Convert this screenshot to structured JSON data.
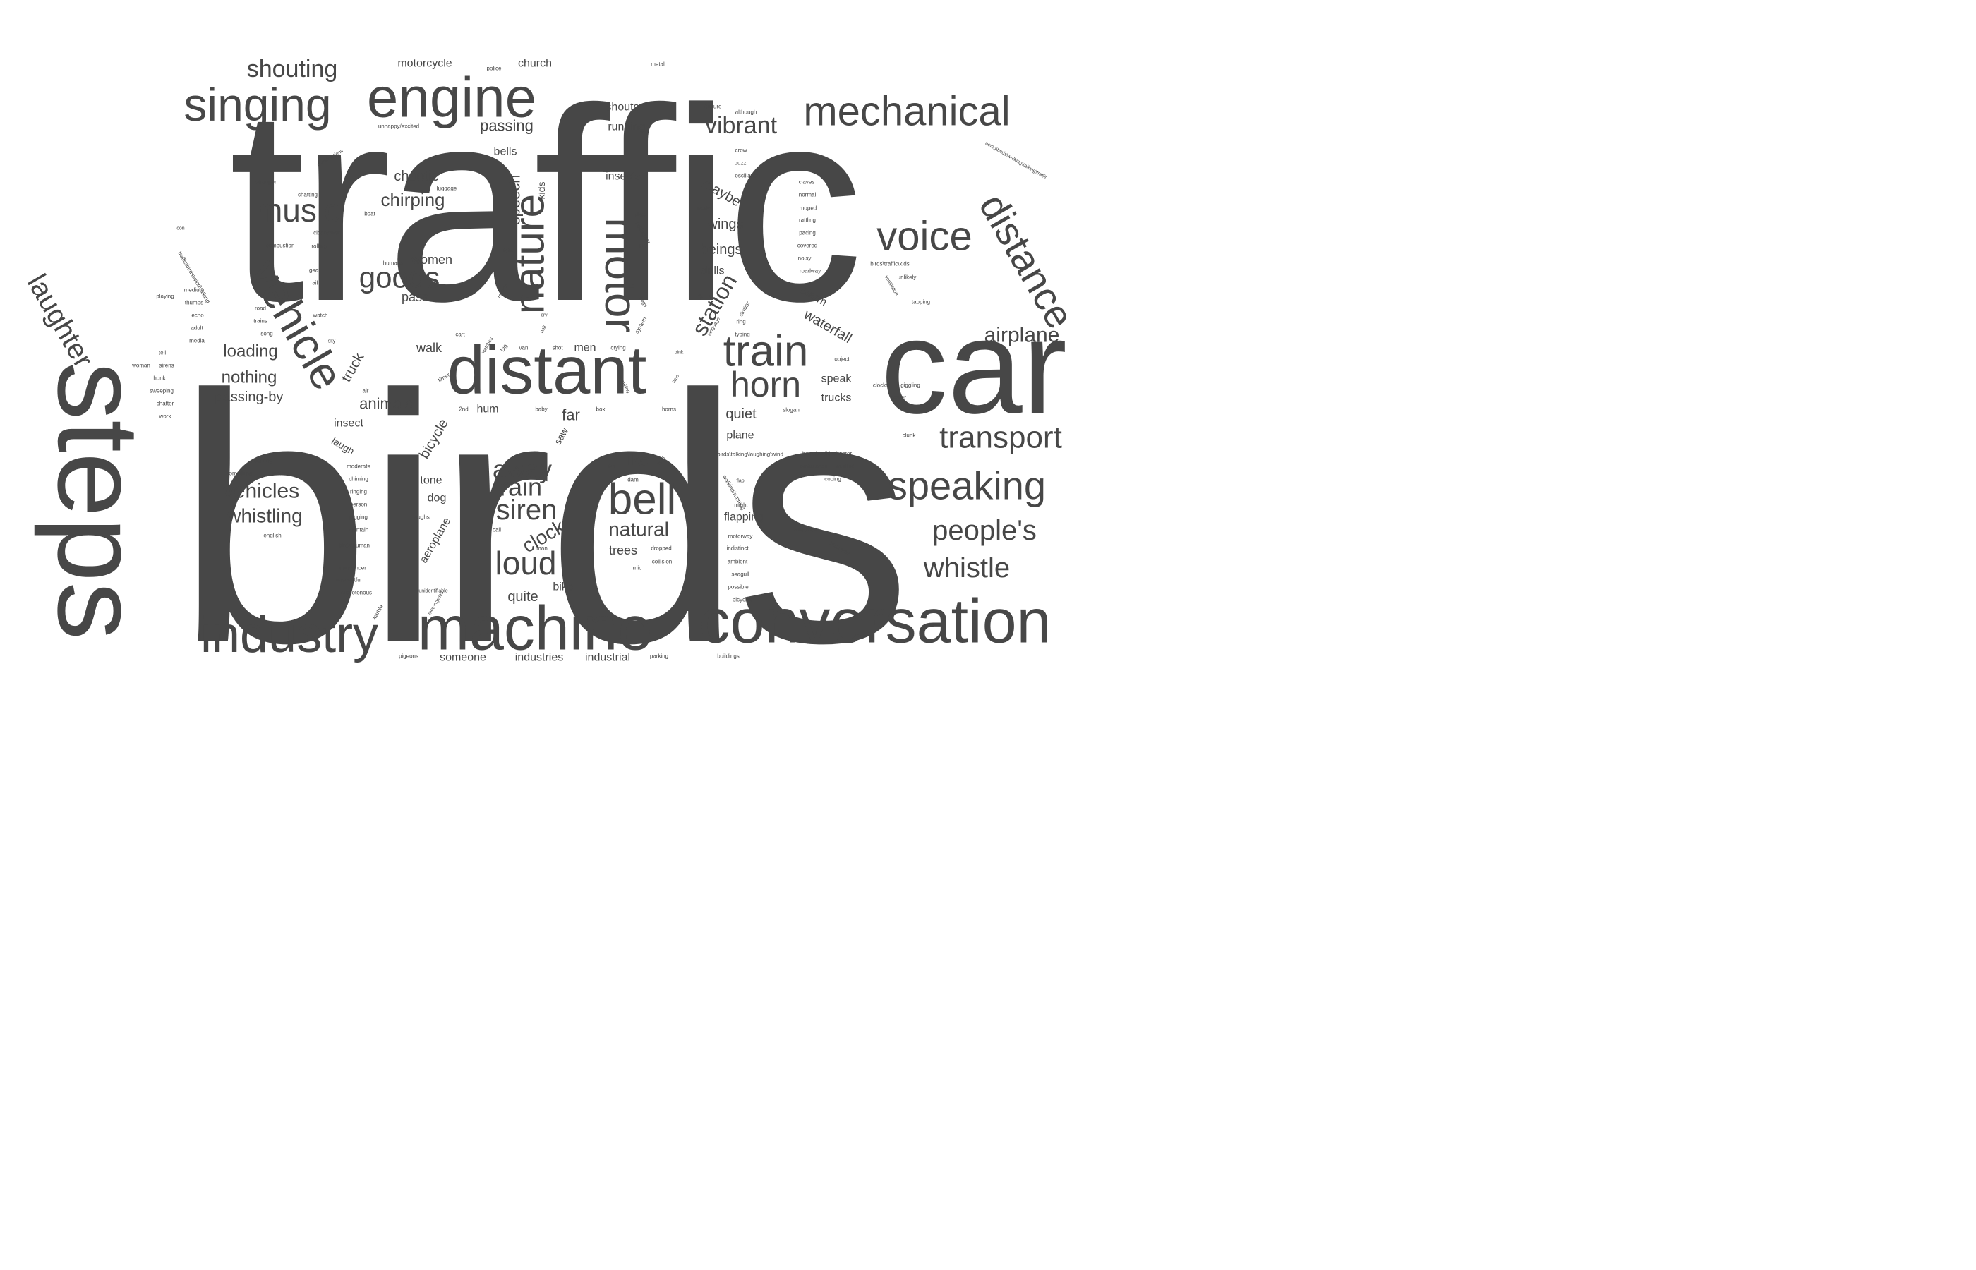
{
  "colors": {
    "word": "#474747",
    "background": "#ffffff"
  },
  "words": [
    {
      "text": "traffic",
      "size": 5,
      "rot": 0
    },
    {
      "text": "birds",
      "size": 5,
      "rot": 0
    },
    {
      "text": "car",
      "size": 4,
      "rot": 0
    },
    {
      "text": "steps",
      "size": 4,
      "rot": 90
    },
    {
      "text": "distant",
      "size": 3,
      "rot": 0
    },
    {
      "text": "machine",
      "size": 3,
      "rot": 0
    },
    {
      "text": "conversation",
      "size": 3,
      "rot": 0
    },
    {
      "text": "industry",
      "size": 3,
      "rot": 0
    },
    {
      "text": "engine",
      "size": 3,
      "rot": 0
    },
    {
      "text": "singing",
      "size": 3,
      "rot": 0
    },
    {
      "text": "mechanical",
      "size": 3,
      "rot": 0
    },
    {
      "text": "vehicle",
      "size": 3,
      "rot": 60
    },
    {
      "text": "motor",
      "size": 3,
      "rot": 90
    },
    {
      "text": "nature",
      "size": 3,
      "rot": -90
    },
    {
      "text": "voice",
      "size": 3,
      "rot": 0
    },
    {
      "text": "bell",
      "size": 3,
      "rot": 0
    },
    {
      "text": "train",
      "size": 3,
      "rot": 0
    },
    {
      "text": "horn",
      "size": 3,
      "rot": 0
    },
    {
      "text": "speaking",
      "size": 3,
      "rot": 0
    },
    {
      "text": "distance",
      "size": 3,
      "rot": 60
    },
    {
      "text": "transport",
      "size": 2,
      "rot": 0
    },
    {
      "text": "people's",
      "size": 2,
      "rot": 0
    },
    {
      "text": "whistle",
      "size": 2,
      "rot": 0
    },
    {
      "text": "laughter",
      "size": 2,
      "rot": 60
    },
    {
      "text": "music",
      "size": 2,
      "rot": 0
    },
    {
      "text": "goods",
      "size": 2,
      "rot": 0
    },
    {
      "text": "loud",
      "size": 2,
      "rot": 0
    },
    {
      "text": "siren",
      "size": 2,
      "rot": 0
    },
    {
      "text": "away",
      "size": 2,
      "rot": 0
    },
    {
      "text": "rain",
      "size": 2,
      "rot": 0
    },
    {
      "text": "clock",
      "size": 2,
      "rot": -30
    },
    {
      "text": "vibrant",
      "size": 2,
      "rot": 0
    },
    {
      "text": "airplane",
      "size": 2,
      "rot": 0
    },
    {
      "text": "station",
      "size": 2,
      "rot": -60
    },
    {
      "text": "shouting",
      "size": 2,
      "rot": 0
    },
    {
      "text": "vehicles",
      "size": 2,
      "rot": 0
    },
    {
      "text": "whistling",
      "size": 2,
      "rot": 0
    },
    {
      "text": "natural",
      "size": 2,
      "rot": 0
    },
    {
      "text": "like",
      "size": 1,
      "rot": 0
    },
    {
      "text": "chirping",
      "size": 1,
      "rot": 0
    },
    {
      "text": "chaotic",
      "size": 1,
      "rot": 0
    },
    {
      "text": "women",
      "size": 1,
      "rot": 0
    },
    {
      "text": "pass",
      "size": 1,
      "rot": 0
    },
    {
      "text": "speech",
      "size": 1,
      "rot": -90
    },
    {
      "text": "kids",
      "size": 1,
      "rot": -90
    },
    {
      "text": "loading",
      "size": 1,
      "rot": 0
    },
    {
      "text": "nothing",
      "size": 1,
      "rot": 0
    },
    {
      "text": "passing-by",
      "size": 1,
      "rot": 0
    },
    {
      "text": "truck",
      "size": 1,
      "rot": -60
    },
    {
      "text": "animals",
      "size": 1,
      "rot": 0
    },
    {
      "text": "walk",
      "size": 1,
      "rot": 0
    },
    {
      "text": "men",
      "size": 1,
      "rot": 0
    },
    {
      "text": "far",
      "size": 1,
      "rot": 0
    },
    {
      "text": "hum",
      "size": 1,
      "rot": 0
    },
    {
      "text": "insect",
      "size": 1,
      "rot": 0
    },
    {
      "text": "laugh",
      "size": 1,
      "rot": 30
    },
    {
      "text": "tone",
      "size": 1,
      "rot": 0
    },
    {
      "text": "dog",
      "size": 1,
      "rot": 0
    },
    {
      "text": "bicycle",
      "size": 1,
      "rot": -60
    },
    {
      "text": "aeroplane",
      "size": 1,
      "rot": -60
    },
    {
      "text": "saw",
      "size": 1,
      "rot": -60
    },
    {
      "text": "quite",
      "size": 1,
      "rot": 0
    },
    {
      "text": "bike",
      "size": 1,
      "rot": 0
    },
    {
      "text": "trees",
      "size": 1,
      "rot": 0
    },
    {
      "text": "someone",
      "size": 1,
      "rot": 0
    },
    {
      "text": "industries",
      "size": 1,
      "rot": 0
    },
    {
      "text": "industrial",
      "size": 1,
      "rot": 0
    },
    {
      "text": "motorcycle",
      "size": 1,
      "rot": 0
    },
    {
      "text": "church",
      "size": 1,
      "rot": 0
    },
    {
      "text": "passing",
      "size": 1,
      "rot": 0
    },
    {
      "text": "bells",
      "size": 1,
      "rot": 0
    },
    {
      "text": "shouts",
      "size": 1,
      "rot": 0
    },
    {
      "text": "running",
      "size": 1,
      "rot": 0
    },
    {
      "text": "insects",
      "size": 1,
      "rot": 0
    },
    {
      "text": "maybe",
      "size": 1,
      "rot": 30
    },
    {
      "text": "wings",
      "size": 1,
      "rot": 0
    },
    {
      "text": "beings",
      "size": 1,
      "rot": 0
    },
    {
      "text": "drills",
      "size": 1,
      "rot": 0
    },
    {
      "text": "alarm",
      "size": 1,
      "rot": 30
    },
    {
      "text": "waterfall",
      "size": 1,
      "rot": 30
    },
    {
      "text": "speak",
      "size": 1,
      "rot": 0
    },
    {
      "text": "trucks",
      "size": 1,
      "rot": 0
    },
    {
      "text": "quiet",
      "size": 1,
      "rot": 0
    },
    {
      "text": "plane",
      "size": 1,
      "rot": 0
    },
    {
      "text": "flapping",
      "size": 1,
      "rot": 0
    },
    {
      "text": "police",
      "size": 0,
      "rot": 0
    },
    {
      "text": "metal",
      "size": 0,
      "rot": 0
    },
    {
      "text": "unhappy/excited",
      "size": 0,
      "rot": 0
    },
    {
      "text": "feature",
      "size": 0,
      "rot": 0
    },
    {
      "text": "although",
      "size": 0,
      "rot": 0
    },
    {
      "text": "crow",
      "size": 0,
      "rot": 0
    },
    {
      "text": "buzz",
      "size": 0,
      "rot": 0
    },
    {
      "text": "oscillation",
      "size": 0,
      "rot": 0
    },
    {
      "text": "works",
      "size": 0,
      "rot": 0
    },
    {
      "text": "being\\birds\\walking\\talking\\traffic",
      "size": 0,
      "rot": 30
    },
    {
      "text": "claves",
      "size": 0,
      "rot": 0
    },
    {
      "text": "normal",
      "size": 0,
      "rot": 0
    },
    {
      "text": "moped",
      "size": 0,
      "rot": 0
    },
    {
      "text": "rattling",
      "size": 0,
      "rot": 0
    },
    {
      "text": "pacing",
      "size": 0,
      "rot": 0
    },
    {
      "text": "covered",
      "size": 0,
      "rot": 0
    },
    {
      "text": "noisy",
      "size": 0,
      "rot": 0
    },
    {
      "text": "roadway",
      "size": 0,
      "rot": 0
    },
    {
      "text": "birds\\traffic\\kids",
      "size": 0,
      "rot": 0
    },
    {
      "text": "unlikely",
      "size": 0,
      "rot": 0
    },
    {
      "text": "ventilation",
      "size": 0,
      "rot": 60
    },
    {
      "text": "tapping",
      "size": 0,
      "rot": 0
    },
    {
      "text": "constructions",
      "size": 0,
      "rot": -30
    },
    {
      "text": "stronger",
      "size": 0,
      "rot": 0
    },
    {
      "text": "chatting",
      "size": 0,
      "rot": 0
    },
    {
      "text": "luggage",
      "size": 0,
      "rot": 0
    },
    {
      "text": "boat",
      "size": 0,
      "rot": 0
    },
    {
      "text": "clocktower",
      "size": 0,
      "rot": 0
    },
    {
      "text": "combustion",
      "size": 0,
      "rot": 0
    },
    {
      "text": "rolling",
      "size": 0,
      "rot": 0
    },
    {
      "text": "humans",
      "size": 0,
      "rot": 0
    },
    {
      "text": "gear",
      "size": 0,
      "rot": 0
    },
    {
      "text": "rail",
      "size": 0,
      "rot": 0
    },
    {
      "text": "con",
      "size": 0,
      "rot": 0
    },
    {
      "text": "traffic\\birds\\wind\\talking",
      "size": 0,
      "rot": 60
    },
    {
      "text": "medium",
      "size": 0,
      "rot": 0
    },
    {
      "text": "thumps",
      "size": 0,
      "rot": 0
    },
    {
      "text": "playing",
      "size": 0,
      "rot": 0
    },
    {
      "text": "echo",
      "size": 0,
      "rot": 0
    },
    {
      "text": "adult",
      "size": 0,
      "rot": 0
    },
    {
      "text": "media",
      "size": 0,
      "rot": 0
    },
    {
      "text": "road",
      "size": 0,
      "rot": 0
    },
    {
      "text": "trains",
      "size": 0,
      "rot": 0
    },
    {
      "text": "song",
      "size": 0,
      "rot": 0
    },
    {
      "text": "watch",
      "size": 0,
      "rot": 0
    },
    {
      "text": "tell",
      "size": 0,
      "rot": 0
    },
    {
      "text": "woman",
      "size": 0,
      "rot": 0
    },
    {
      "text": "sirens",
      "size": 0,
      "rot": 0
    },
    {
      "text": "honk",
      "size": 0,
      "rot": 0
    },
    {
      "text": "sweeping",
      "size": 0,
      "rot": 0
    },
    {
      "text": "chatter",
      "size": 0,
      "rot": 0
    },
    {
      "text": "work",
      "size": 0,
      "rot": 0
    },
    {
      "text": "place",
      "size": 0,
      "rot": 0
    },
    {
      "text": "helicopter",
      "size": 0,
      "rot": 60
    },
    {
      "text": "city",
      "size": 0,
      "rot": 0
    },
    {
      "text": "faint",
      "size": 0,
      "rot": 0
    },
    {
      "text": "reverse",
      "size": 0,
      "rot": -60
    },
    {
      "text": "frogs",
      "size": 0,
      "rot": 60
    },
    {
      "text": "system",
      "size": 0,
      "rot": -60
    },
    {
      "text": "cry",
      "size": 0,
      "rot": 0
    },
    {
      "text": "nail",
      "size": 0,
      "rot": -60
    },
    {
      "text": "lot",
      "size": 0,
      "rot": 60
    },
    {
      "text": "language",
      "size": 0,
      "rot": -60
    },
    {
      "text": "similar",
      "size": 0,
      "rot": -60
    },
    {
      "text": "ring",
      "size": 0,
      "rot": 0
    },
    {
      "text": "typing",
      "size": 0,
      "rot": 0
    },
    {
      "text": "cart",
      "size": 0,
      "rot": 0
    },
    {
      "text": "sky",
      "size": 0,
      "rot": 0
    },
    {
      "text": "watches",
      "size": 0,
      "rot": -60
    },
    {
      "text": "big",
      "size": 0,
      "rot": -60
    },
    {
      "text": "van",
      "size": 0,
      "rot": 0
    },
    {
      "text": "shot",
      "size": 0,
      "rot": 0
    },
    {
      "text": "crying",
      "size": 0,
      "rot": 0
    },
    {
      "text": "pink",
      "size": 0,
      "rot": 0
    },
    {
      "text": "squeaking",
      "size": 0,
      "rot": 60
    },
    {
      "text": "time",
      "size": 0,
      "rot": -60
    },
    {
      "text": "timer",
      "size": 0,
      "rot": -30
    },
    {
      "text": "air",
      "size": 0,
      "rot": 0
    },
    {
      "text": "2nd",
      "size": 0,
      "rot": 0
    },
    {
      "text": "baby",
      "size": 0,
      "rot": 0
    },
    {
      "text": "box",
      "size": 0,
      "rot": 0
    },
    {
      "text": "horns",
      "size": 0,
      "rot": 0
    },
    {
      "text": "slogan",
      "size": 0,
      "rot": 0
    },
    {
      "text": "object",
      "size": 0,
      "rot": 0
    },
    {
      "text": "clocks",
      "size": 0,
      "rot": 0
    },
    {
      "text": "giggling",
      "size": 0,
      "rot": 0
    },
    {
      "text": "power",
      "size": 0,
      "rot": 0
    },
    {
      "text": "clunk",
      "size": 0,
      "rot": 0
    },
    {
      "text": "coming",
      "size": 0,
      "rot": 0
    },
    {
      "text": "something",
      "size": 0,
      "rot": 0
    },
    {
      "text": "motors",
      "size": 0,
      "rot": 0
    },
    {
      "text": "moderate",
      "size": 0,
      "rot": 0
    },
    {
      "text": "chiming",
      "size": 0,
      "rot": 0
    },
    {
      "text": "ringing",
      "size": 0,
      "rot": 0
    },
    {
      "text": "person",
      "size": 0,
      "rot": 0
    },
    {
      "text": "jogging",
      "size": 0,
      "rot": 0
    },
    {
      "text": "fountain",
      "size": 0,
      "rot": 0
    },
    {
      "text": "english",
      "size": 0,
      "rot": 0
    },
    {
      "text": "birds\\human",
      "size": 0,
      "rot": 0
    },
    {
      "text": "announcer",
      "size": 0,
      "rot": 0
    },
    {
      "text": "uneventful",
      "size": 0,
      "rot": 0
    },
    {
      "text": "monotonous",
      "size": 0,
      "rot": 0
    },
    {
      "text": "unidentifiable",
      "size": 0,
      "rot": 0
    },
    {
      "text": "motorcycles",
      "size": 0,
      "rot": -60
    },
    {
      "text": "warble",
      "size": 0,
      "rot": -60
    },
    {
      "text": "pigeons",
      "size": 0,
      "rot": 0
    },
    {
      "text": "laughs",
      "size": 0,
      "rot": 0
    },
    {
      "text": "call",
      "size": 0,
      "rot": 0
    },
    {
      "text": "man",
      "size": 0,
      "rot": 0
    },
    {
      "text": "fan",
      "size": 0,
      "rot": 0
    },
    {
      "text": "bus",
      "size": 0,
      "rot": -60
    },
    {
      "text": "dam",
      "size": 0,
      "rot": 0
    },
    {
      "text": "dropped",
      "size": 0,
      "rot": 0
    },
    {
      "text": "collision",
      "size": 0,
      "rot": 0
    },
    {
      "text": "mic",
      "size": 0,
      "rot": 0
    },
    {
      "text": "parking",
      "size": 0,
      "rot": 0
    },
    {
      "text": "buildings",
      "size": 0,
      "rot": 0
    },
    {
      "text": "birds\\talking\\laughing\\wind",
      "size": 0,
      "rot": 0
    },
    {
      "text": "flap",
      "size": 0,
      "rot": 0
    },
    {
      "text": "walking/running",
      "size": 0,
      "rot": 60
    },
    {
      "text": "might",
      "size": 0,
      "rot": 0
    },
    {
      "text": "motorway",
      "size": 0,
      "rot": 0
    },
    {
      "text": "indistinct",
      "size": 0,
      "rot": 0
    },
    {
      "text": "ambient",
      "size": 0,
      "rot": 0
    },
    {
      "text": "seagull",
      "size": 0,
      "rot": 0
    },
    {
      "text": "possible",
      "size": 0,
      "rot": 0
    },
    {
      "text": "bicycles",
      "size": 0,
      "rot": 0
    },
    {
      "text": "traffic\\birds",
      "size": 0,
      "rot": 0
    },
    {
      "text": "buzzsaw",
      "size": 0,
      "rot": 30
    },
    {
      "text": "being\\walking\\water",
      "size": 0,
      "rot": 0
    },
    {
      "text": "ambulance",
      "size": 0,
      "rot": 0
    },
    {
      "text": "muffled",
      "size": 0,
      "rot": 0
    },
    {
      "text": "cooing",
      "size": 0,
      "rot": 0
    },
    {
      "text": "scooter",
      "size": 0,
      "rot": 0
    }
  ]
}
